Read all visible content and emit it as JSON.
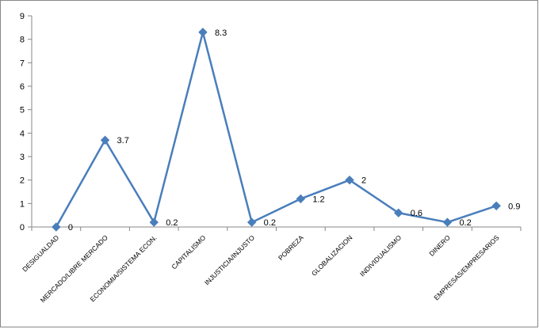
{
  "chart_data": {
    "type": "line",
    "categories": [
      "DESIGUALDAD",
      "MERCADO/LIBRE MERCADO",
      "ECONOMIA/SISTEMA ECON.",
      "CAPITALISMO",
      "INJUSTICIA/INJUSTO",
      "POBREZA",
      "GLOBALIZACION",
      "INDIVIDUALISMO",
      "DINERO",
      "EMPRESAS/EMPRESARIOS"
    ],
    "series": [
      {
        "values": [
          0,
          3.7,
          0.2,
          8.3,
          0.2,
          1.2,
          2,
          0.6,
          0.2,
          0.9
        ],
        "data_labels": [
          "0",
          "3.7",
          "0.2",
          "8.3",
          "0.2",
          "1.2",
          "2",
          "0.6",
          "0.2",
          "0.9"
        ],
        "color": "#4a7ebb"
      }
    ],
    "yticks": [
      "0",
      "1",
      "2",
      "3",
      "4",
      "5",
      "6",
      "7",
      "8",
      "9"
    ],
    "ylim": [
      0,
      9
    ],
    "grid": false,
    "legend": "none",
    "title": "",
    "xlabel": "",
    "ylabel": "",
    "colors": {
      "line": "#4a7ebb",
      "marker": "#4a7ebb",
      "axis": "#878787",
      "border": "#878787"
    }
  }
}
